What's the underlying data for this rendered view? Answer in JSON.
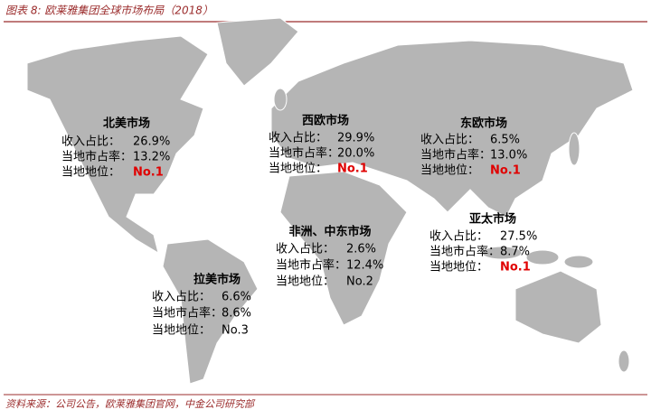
{
  "title": "图表 8: 欧莱雅集团全球市场布局（2018）",
  "regions": [
    {
      "name": "北美市场",
      "rows": [
        {
          "label": "收入占比：",
          "value": "26.9%"
        },
        {
          "label": "当地市占率：",
          "value": "13.2%"
        },
        {
          "label": "当地地位：",
          "value": "No.1",
          "color": "#e00000"
        }
      ]
    },
    {
      "name": "西欧市场",
      "rows": [
        {
          "label": "收入占比：",
          "value": "29.9%"
        },
        {
          "label": "当地市占率：",
          "value": "20.0%"
        },
        {
          "label": "当地地位：",
          "value": "No.1",
          "color": "#e00000"
        }
      ]
    },
    {
      "name": "东欧市场",
      "rows": [
        {
          "label": "收入占比：",
          "value": "6.5%"
        },
        {
          "label": "当地市占率：",
          "value": "13.0%"
        },
        {
          "label": "当地地位：",
          "value": "No.1",
          "color": "#e00000"
        }
      ]
    },
    {
      "name": "非洲、中东市场",
      "rows": [
        {
          "label": "收入占比：",
          "value": "2.6%"
        },
        {
          "label": "当地市占率：",
          "value": "12.4%"
        },
        {
          "label": "当地地位：",
          "value": "No.2"
        }
      ]
    },
    {
      "name": "亚太市场",
      "rows": [
        {
          "label": "收入占比：",
          "value": "27.5%"
        },
        {
          "label": "当地市占率：",
          "value": "8.7%"
        },
        {
          "label": "当地地位：",
          "value": "No.1",
          "color": "#e00000"
        }
      ]
    },
    {
      "name": "拉美市场",
      "rows": [
        {
          "label": "收入占比：",
          "value": "6.6%"
        },
        {
          "label": "当地市占率：",
          "value": "8.6%"
        },
        {
          "label": "当地地位：",
          "value": "No.3"
        }
      ]
    }
  ],
  "source": "资料来源：公司公告，欧莱雅集团官网，中金公司研究部"
}
